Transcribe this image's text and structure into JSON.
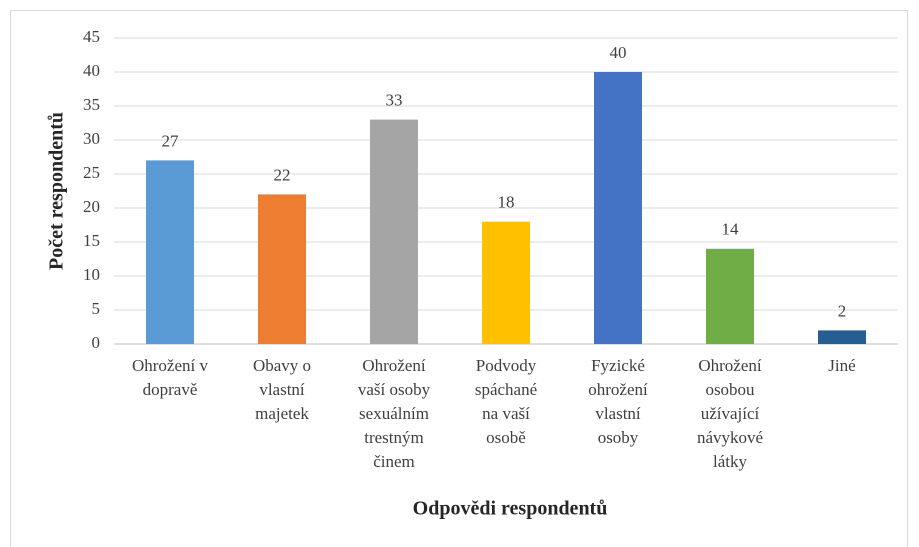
{
  "chart_data": {
    "type": "bar",
    "y_label": "Počet respondentů",
    "x_label": "Odpovědi respondentů",
    "categories": [
      "Ohrožení v\ndopravě",
      "Obavy o\nvlastní\nmajetek",
      "Ohrožení\nvaší osoby\nsexuálním\ntrestným\nčinem",
      "Podvody\nspáchané\nna vaší\nosobě",
      "Fyzické\nohrožení\nvlastní\nosoby",
      "Ohrožení\nosobou\nužívající\nnávykové\nlátky",
      "Jiné"
    ],
    "values": [
      27,
      22,
      33,
      18,
      40,
      14,
      2
    ],
    "colors": [
      "#5b9bd5",
      "#ed7d31",
      "#a5a5a5",
      "#ffc000",
      "#4472c4",
      "#70ad47",
      "#255e91"
    ],
    "ylim": [
      0,
      45
    ],
    "yticks": [
      0,
      5,
      10,
      15,
      20,
      25,
      30,
      35,
      40,
      45
    ],
    "grid": true
  }
}
